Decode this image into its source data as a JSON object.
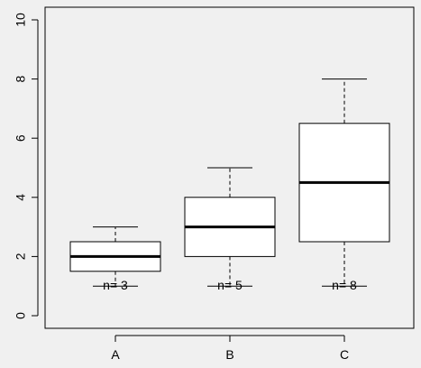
{
  "chart_data": {
    "type": "box",
    "title": "",
    "xlabel": "",
    "ylabel": "",
    "ylim": [
      0,
      10
    ],
    "y_ticks": [
      "0",
      "2",
      "4",
      "6",
      "8",
      "10"
    ],
    "categories": [
      "A",
      "B",
      "C"
    ],
    "boxes": [
      {
        "category": "A",
        "min": 1,
        "q1": 1.5,
        "median": 2,
        "q3": 2.5,
        "max": 3,
        "n_label": "n= 3"
      },
      {
        "category": "B",
        "min": 1,
        "q1": 2,
        "median": 3,
        "q3": 4,
        "max": 5,
        "n_label": "n= 5"
      },
      {
        "category": "C",
        "min": 1,
        "q1": 2.5,
        "median": 4.5,
        "q3": 6.5,
        "max": 8,
        "n_label": "n= 8"
      }
    ],
    "grid": false,
    "colors": {
      "background": "#f0f0f0",
      "box_fill": "#ffffff",
      "stroke": "#000000"
    }
  }
}
